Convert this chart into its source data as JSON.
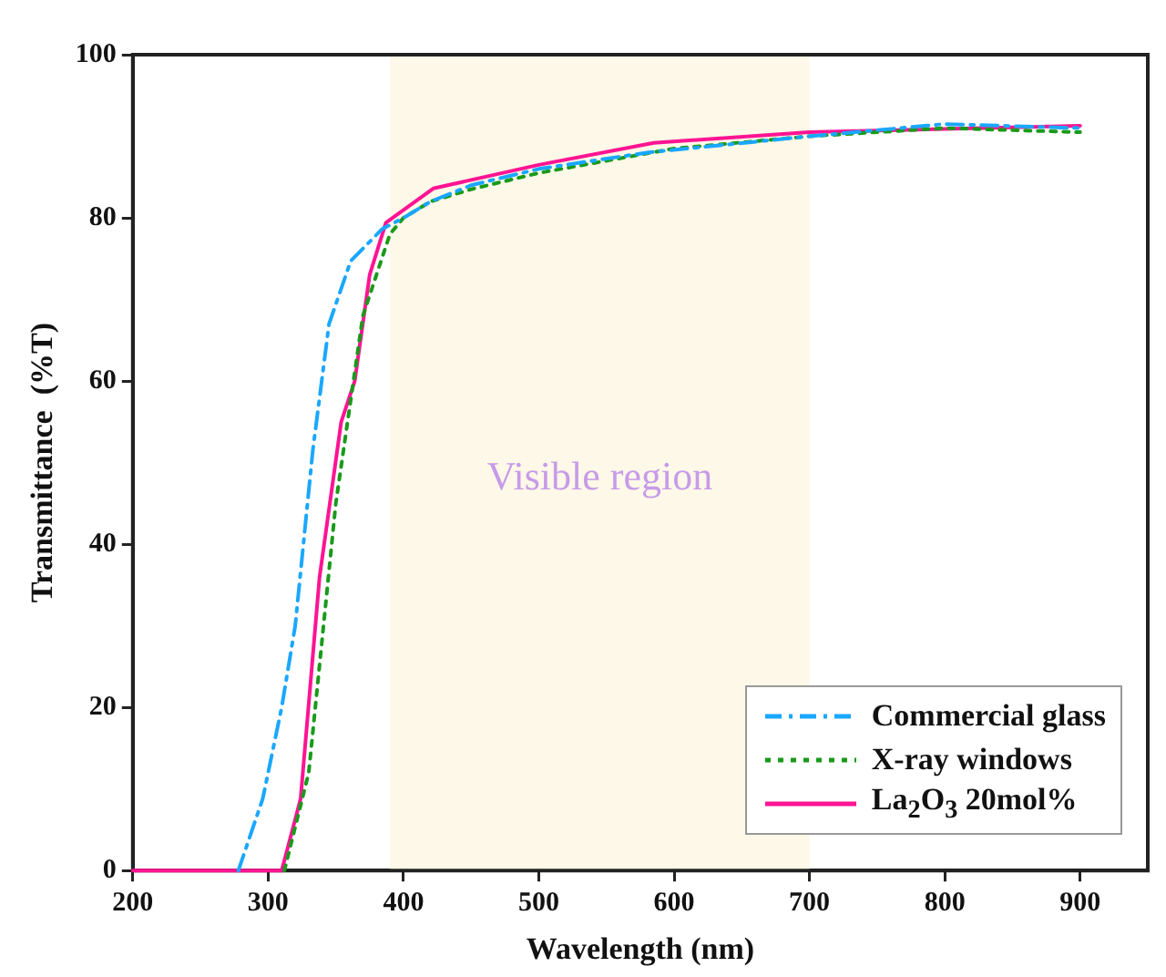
{
  "chart_data": {
    "type": "line",
    "xlabel": "Wavelength (nm)",
    "ylabel": "Transmittance  (%T)",
    "xlim": [
      200,
      950
    ],
    "xticks": [
      200,
      300,
      400,
      500,
      600,
      700,
      800,
      900
    ],
    "ylim": [
      0,
      100
    ],
    "yticks": [
      0,
      20,
      40,
      60,
      80,
      100
    ],
    "grid": false,
    "legend": "bottom right",
    "marker": "none",
    "bands": [
      {
        "axis": "x",
        "from": 390,
        "to": 700,
        "label": "Visible region",
        "color": "#fdf8e8"
      }
    ],
    "series": [
      {
        "name": "Commercial glass",
        "color": "#1aa7ff",
        "line_style": "dashdot",
        "x": [
          278,
          296,
          310,
          320,
          333,
          345,
          361,
          384,
          400,
          420,
          450,
          500,
          580,
          700,
          800,
          900
        ],
        "values": [
          0,
          8.8,
          20,
          30,
          51.5,
          67,
          74.7,
          78.6,
          80,
          82,
          84,
          86,
          88,
          90,
          91.5,
          91
        ]
      },
      {
        "name": "X-ray windows",
        "color": "#1a9a1a",
        "line_style": "dotted",
        "x": [
          312,
          330,
          350,
          370,
          390,
          400,
          420,
          450,
          500,
          600,
          700,
          800,
          900
        ],
        "values": [
          0,
          12,
          45,
          68,
          78,
          80,
          82,
          83.5,
          85.5,
          88.5,
          90,
          91,
          90.5
        ]
      },
      {
        "name": "La$_{2}$O$_{3}$ 20mol%",
        "color": "#ff1493",
        "line_style": "solid",
        "x": [
          200,
          310,
          324,
          338,
          354,
          364,
          375,
          387,
          422,
          500,
          585,
          700,
          900
        ],
        "values": [
          0,
          0,
          8.8,
          36,
          55,
          60,
          73,
          79.4,
          83.6,
          86.5,
          89.2,
          90.5,
          91.3
        ]
      }
    ]
  }
}
